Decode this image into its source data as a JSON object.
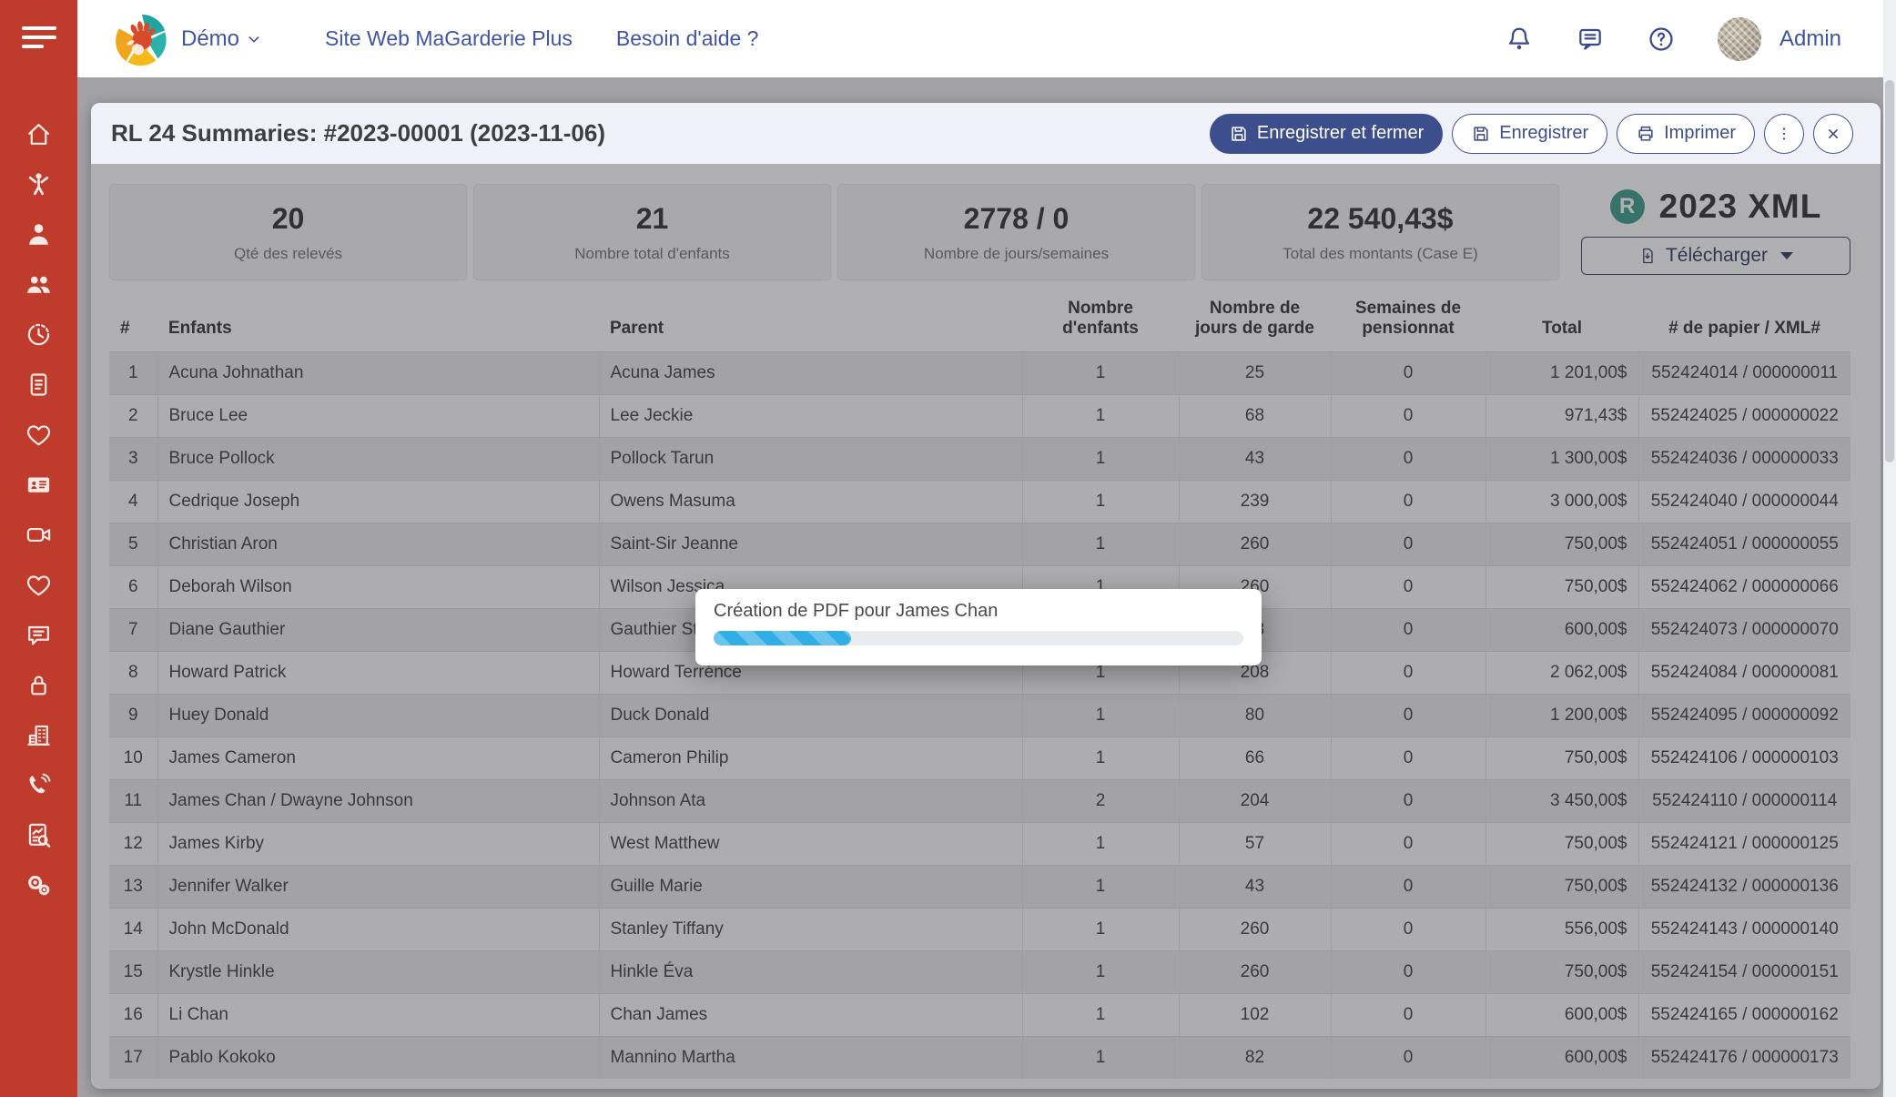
{
  "colors": {
    "sidebar_red": "#bf3b2c",
    "link_blue": "#3f55a0",
    "icon_blue": "#3b4a8f",
    "accent_navy": "#3d4e8c",
    "badge_teal": "#45a092",
    "progress_blue": "#31aee6"
  },
  "sidebar": {
    "items": [
      {
        "label": "home",
        "icon": "home-icon"
      },
      {
        "label": "children",
        "icon": "child-icon"
      },
      {
        "label": "educators",
        "icon": "educator-icon"
      },
      {
        "label": "families",
        "icon": "people-icon"
      },
      {
        "label": "schedule",
        "icon": "clock-icon"
      },
      {
        "label": "invoices",
        "icon": "invoice-icon"
      },
      {
        "label": "health",
        "icon": "heart-icon"
      },
      {
        "label": "id-cards",
        "icon": "id-card-icon"
      },
      {
        "label": "cameras",
        "icon": "video-camera-icon"
      },
      {
        "label": "activities",
        "icon": "heart-icon"
      },
      {
        "label": "messages",
        "icon": "chat-icon"
      },
      {
        "label": "security",
        "icon": "lock-icon"
      },
      {
        "label": "organization",
        "icon": "buildings-icon"
      },
      {
        "label": "calls",
        "icon": "phone-icon"
      },
      {
        "label": "reports",
        "icon": "report-search-icon"
      },
      {
        "label": "settings",
        "icon": "gears-icon"
      }
    ]
  },
  "header": {
    "brand": "Démo",
    "nav": [
      "Site Web MaGarderie Plus",
      "Besoin d'aide ?"
    ],
    "user": "Admin"
  },
  "panel": {
    "title": "RL 24 Summaries: #2023-00001 (2023-11-06)",
    "buttons": {
      "save_close": "Enregistrer et fermer",
      "save": "Enregistrer",
      "print": "Imprimer"
    }
  },
  "cards": [
    {
      "value": "20",
      "label": "Qté des relevés"
    },
    {
      "value": "21",
      "label": "Nombre total d'enfants"
    },
    {
      "value": "2778 / 0",
      "label": "Nombre de jours/semaines"
    },
    {
      "value": "22 540,43$",
      "label": "Total des montants (Case E)"
    }
  ],
  "xml": {
    "badge": "R",
    "title": "2023 XML",
    "download_label": "Télécharger"
  },
  "table": {
    "headers": [
      "#",
      "Enfants",
      "Parent",
      "Nombre d'enfants",
      "Nombre de jours de garde",
      "Semaines de pensionnat",
      "Total",
      "# de papier / XML#"
    ],
    "rows": [
      [
        "1",
        "Acuna Johnathan",
        "Acuna James",
        "1",
        "25",
        "0",
        "1 201,00$",
        "552424014 / 000000011"
      ],
      [
        "2",
        "Bruce Lee",
        "Lee Jeckie",
        "1",
        "68",
        "0",
        "971,43$",
        "552424025 / 000000022"
      ],
      [
        "3",
        "Bruce Pollock",
        "Pollock Tarun",
        "1",
        "43",
        "0",
        "1 300,00$",
        "552424036 / 000000033"
      ],
      [
        "4",
        "Cedrique Joseph",
        "Owens Masuma",
        "1",
        "239",
        "0",
        "3 000,00$",
        "552424040 / 000000044"
      ],
      [
        "5",
        "Christian Aron",
        "Saint-Sir Jeanne",
        "1",
        "260",
        "0",
        "750,00$",
        "552424051 / 000000055"
      ],
      [
        "6",
        "Deborah Wilson",
        "Wilson Jessica",
        "1",
        "260",
        "0",
        "750,00$",
        "552424062 / 000000066"
      ],
      [
        "7",
        "Diane Gauthier",
        "Gauthier Stéphanie",
        "1",
        "48",
        "0",
        "600,00$",
        "552424073 / 000000070"
      ],
      [
        "8",
        "Howard Patrick",
        "Howard Terrénce",
        "1",
        "208",
        "0",
        "2 062,00$",
        "552424084 / 000000081"
      ],
      [
        "9",
        "Huey Donald",
        "Duck Donald",
        "1",
        "80",
        "0",
        "1 200,00$",
        "552424095 / 000000092"
      ],
      [
        "10",
        "James Cameron",
        "Cameron Philip",
        "1",
        "66",
        "0",
        "750,00$",
        "552424106 / 000000103"
      ],
      [
        "11",
        "James Chan / Dwayne Johnson",
        "Johnson Ata",
        "2",
        "204",
        "0",
        "3 450,00$",
        "552424110 / 000000114"
      ],
      [
        "12",
        "James Kirby",
        "West Matthew",
        "1",
        "57",
        "0",
        "750,00$",
        "552424121 / 000000125"
      ],
      [
        "13",
        "Jennifer Walker",
        "Guille Marie",
        "1",
        "43",
        "0",
        "750,00$",
        "552424132 / 000000136"
      ],
      [
        "14",
        "John McDonald",
        "Stanley Tiffany",
        "1",
        "260",
        "0",
        "556,00$",
        "552424143 / 000000140"
      ],
      [
        "15",
        "Krystle Hinkle",
        "Hinkle Éva",
        "1",
        "260",
        "0",
        "750,00$",
        "552424154 / 000000151"
      ],
      [
        "16",
        "Li Chan",
        "Chan James",
        "1",
        "102",
        "0",
        "600,00$",
        "552424165 / 000000162"
      ],
      [
        "17",
        "Pablo Kokoko",
        "Mannino Martha",
        "1",
        "82",
        "0",
        "600,00$",
        "552424176 / 000000173"
      ]
    ]
  },
  "progress_dialog": {
    "title": "Création de PDF pour James Chan",
    "percent": 26
  }
}
